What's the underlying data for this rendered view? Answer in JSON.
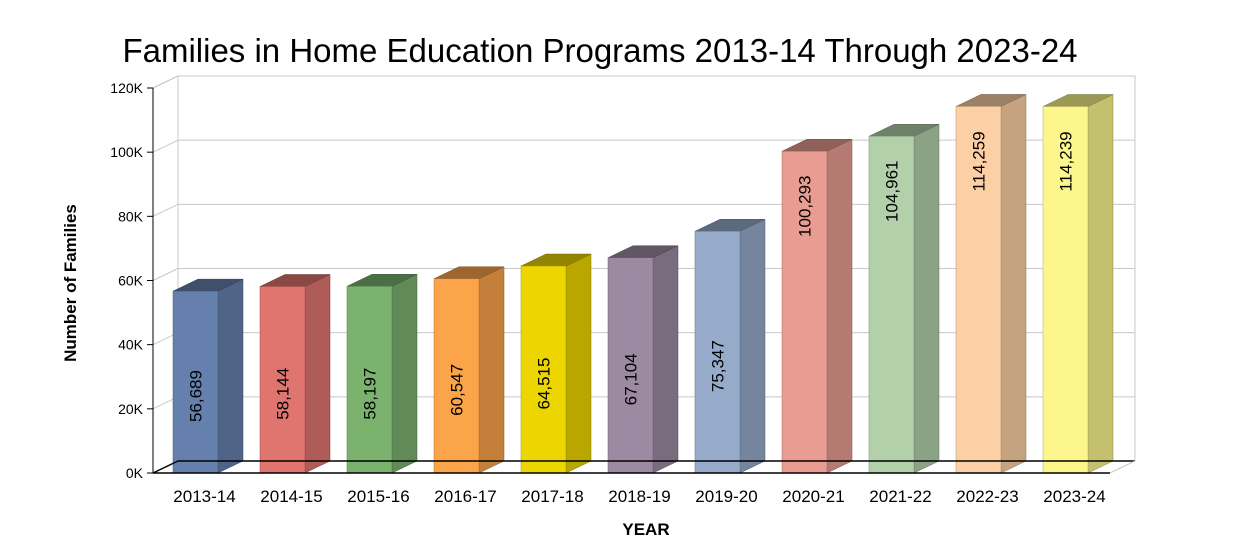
{
  "chart_data": {
    "type": "bar",
    "title": "Families in Home Education Programs 2013-14 Through 2023-24",
    "xlabel": "YEAR",
    "ylabel": "Number of Families",
    "ylim": [
      0,
      120000
    ],
    "yticks": [
      0,
      20000,
      40000,
      60000,
      80000,
      100000,
      120000
    ],
    "ytick_labels": [
      "0K",
      "20K",
      "40K",
      "60K",
      "80K",
      "100K",
      "120K"
    ],
    "grid": true,
    "legend": "none",
    "categories": [
      "2013-14",
      "2014-15",
      "2015-16",
      "2016-17",
      "2017-18",
      "2018-19",
      "2019-20",
      "2020-21",
      "2021-22",
      "2022-23",
      "2023-24"
    ],
    "values": [
      56689,
      58144,
      58197,
      60547,
      64515,
      67104,
      75347,
      100293,
      104961,
      114259,
      114239
    ],
    "value_labels": [
      "56,689",
      "58,144",
      "58,197",
      "60,547",
      "64,515",
      "67,104",
      "75,347",
      "100,293",
      "104,961",
      "114,259",
      "114,239"
    ],
    "colors": [
      "#6680AE",
      "#E07570",
      "#7BB26E",
      "#FBA44A",
      "#EDD600",
      "#9B8AA2",
      "#95ABC9",
      "#E89C92",
      "#B2D0AA",
      "#FCD0A4",
      "#FCF68C"
    ]
  }
}
